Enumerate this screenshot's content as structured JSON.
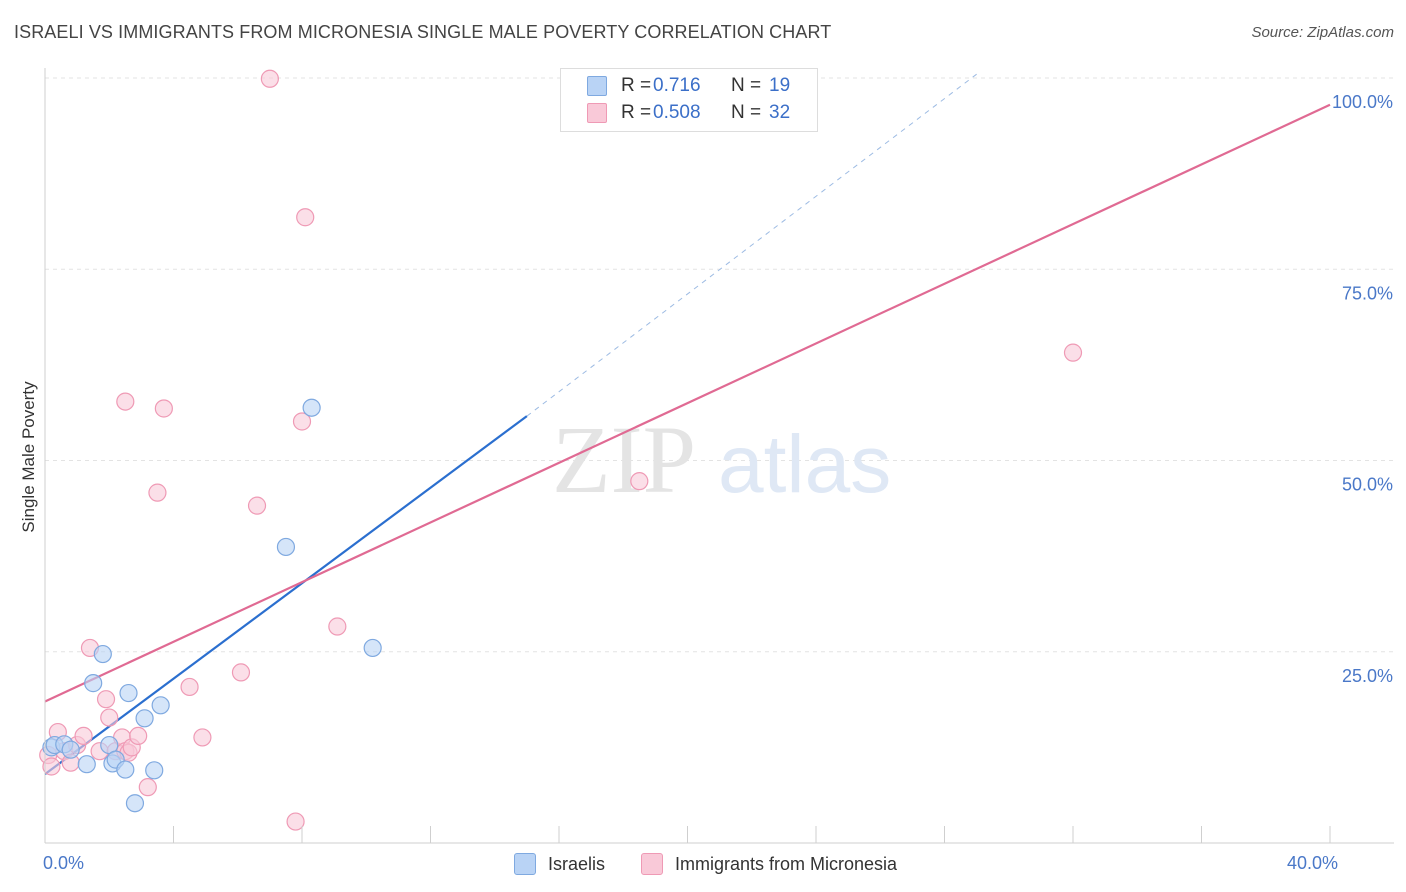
{
  "title": "ISRAELI VS IMMIGRANTS FROM MICRONESIA SINGLE MALE POVERTY CORRELATION CHART",
  "source": "Source: ZipAtlas.com",
  "watermark": {
    "zip": "ZIP",
    "atlas": "atlas"
  },
  "legend": {
    "r_label": "R =",
    "n_label": "N =",
    "series": [
      {
        "r": "0.716",
        "n": "19"
      },
      {
        "r": "0.508",
        "n": "32"
      }
    ]
  },
  "colors": {
    "israelis_fill": "#b9d3f5",
    "israelis_stroke": "#7fa9e0",
    "israelis_line": "#2b6fcf",
    "micronesia_fill": "#f9c9d8",
    "micronesia_stroke": "#ef9ab5",
    "micronesia_line": "#e06a93",
    "tick_label": "#4a78c8",
    "grid": "#e3e3e3"
  },
  "chart_data": {
    "type": "scatter",
    "ylabel": "Single Male Poverty",
    "xlim": [
      0,
      40
    ],
    "ylim": [
      0,
      100
    ],
    "x_tick_labels": [
      {
        "value": 0,
        "label": "0.0%"
      },
      {
        "value": 40,
        "label": "40.0%"
      }
    ],
    "y_tick_labels": [
      {
        "value": 25,
        "label": "25.0%"
      },
      {
        "value": 50,
        "label": "50.0%"
      },
      {
        "value": 75,
        "label": "75.0%"
      },
      {
        "value": 100,
        "label": "100.0%"
      }
    ],
    "series": [
      {
        "name": "Israelis",
        "points": [
          [
            0.2,
            12.5
          ],
          [
            0.3,
            12.8
          ],
          [
            0.6,
            12.9
          ],
          [
            0.8,
            12.2
          ],
          [
            1.3,
            10.3
          ],
          [
            1.5,
            20.9
          ],
          [
            1.8,
            24.7
          ],
          [
            2.0,
            12.8
          ],
          [
            2.1,
            10.4
          ],
          [
            2.2,
            10.9
          ],
          [
            2.5,
            9.6
          ],
          [
            2.6,
            19.6
          ],
          [
            2.8,
            5.2
          ],
          [
            3.1,
            16.3
          ],
          [
            3.4,
            9.5
          ],
          [
            3.6,
            18.0
          ],
          [
            7.5,
            38.7
          ],
          [
            8.3,
            56.9
          ],
          [
            10.2,
            25.5
          ]
        ],
        "trend": {
          "x0": 0,
          "y0": 9.0,
          "x1": 15.0,
          "y1": 55.8,
          "dashed_to_x": 29.0,
          "dashed_to_y": 100.5
        }
      },
      {
        "name": "Immigrants from Micronesia",
        "points": [
          [
            0.1,
            11.5
          ],
          [
            0.2,
            10.0
          ],
          [
            0.4,
            14.5
          ],
          [
            0.6,
            12.0
          ],
          [
            0.8,
            10.5
          ],
          [
            1.0,
            12.8
          ],
          [
            1.2,
            14.0
          ],
          [
            1.4,
            25.5
          ],
          [
            1.7,
            12.0
          ],
          [
            1.9,
            18.8
          ],
          [
            2.0,
            16.4
          ],
          [
            2.2,
            12.0
          ],
          [
            2.4,
            13.8
          ],
          [
            2.5,
            12.0
          ],
          [
            2.5,
            57.7
          ],
          [
            2.6,
            11.8
          ],
          [
            2.7,
            12.5
          ],
          [
            2.9,
            14.0
          ],
          [
            3.2,
            7.3
          ],
          [
            3.5,
            45.8
          ],
          [
            3.7,
            56.8
          ],
          [
            4.5,
            20.4
          ],
          [
            4.9,
            13.8
          ],
          [
            6.1,
            22.3
          ],
          [
            6.6,
            44.1
          ],
          [
            7.0,
            99.9
          ],
          [
            7.8,
            2.8
          ],
          [
            8.0,
            55.1
          ],
          [
            8.1,
            81.8
          ],
          [
            9.1,
            28.3
          ],
          [
            18.5,
            47.3
          ],
          [
            32.0,
            64.1
          ]
        ],
        "trend": {
          "x0": 0,
          "y0": 18.5,
          "x1": 40.0,
          "y1": 96.5
        }
      }
    ]
  }
}
